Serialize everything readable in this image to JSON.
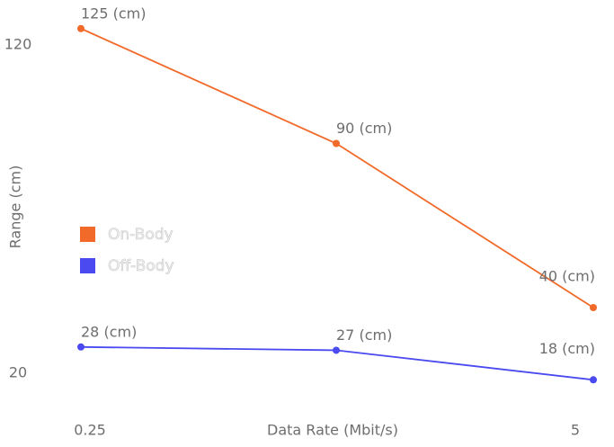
{
  "chart_data": {
    "type": "line",
    "x_label": "Data Rate (Mbit/s)",
    "y_label": "Range (cm)",
    "categories": [
      "0.25",
      null,
      "5"
    ],
    "series": [
      {
        "name": "On-Body",
        "color": "#f26a2a",
        "values": [
          125,
          90,
          40
        ],
        "value_labels": [
          "125 (cm)",
          "90 (cm)",
          "40 (cm)"
        ]
      },
      {
        "name": "Off-Body",
        "color": "#4a4af0",
        "values": [
          28,
          27,
          18
        ],
        "value_labels": [
          "28 (cm)",
          "27 (cm)",
          "18 (cm)"
        ]
      }
    ],
    "ylim": [
      10,
      130
    ],
    "yticks": [
      20,
      120
    ],
    "grid": false
  }
}
